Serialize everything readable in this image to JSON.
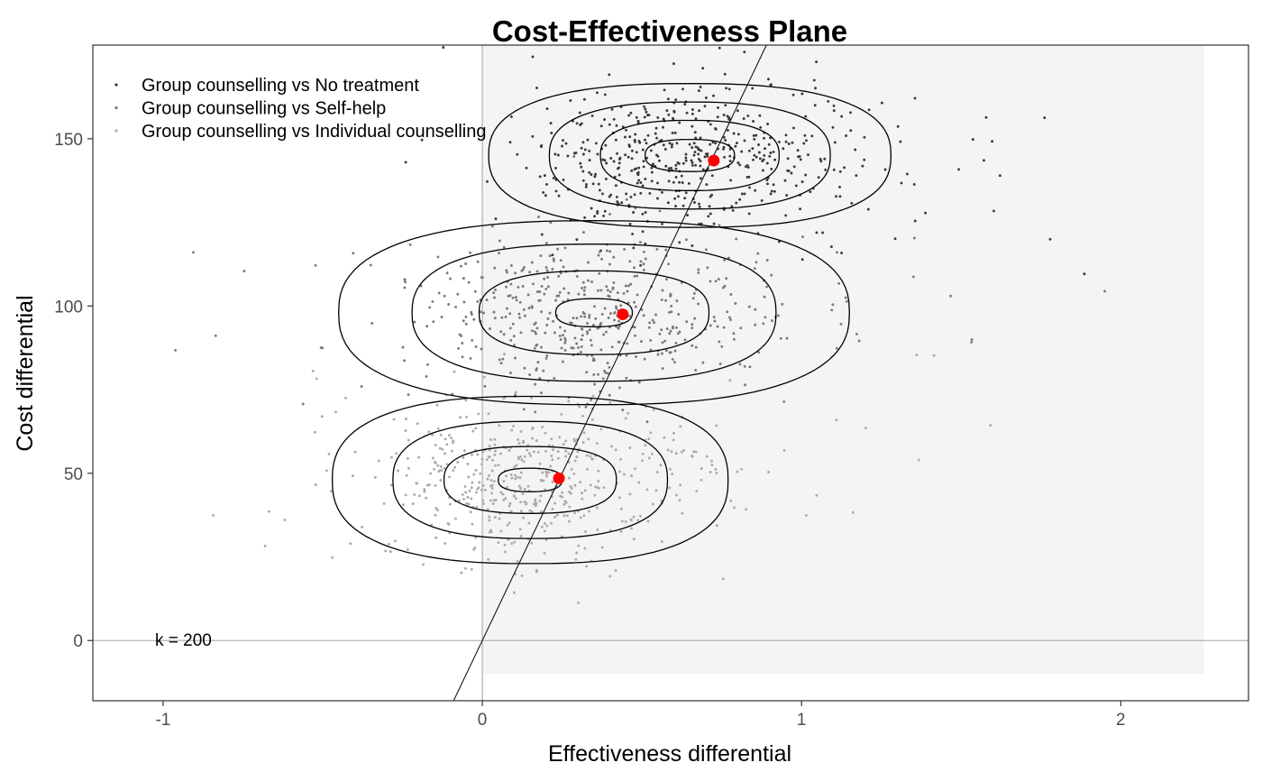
{
  "chart_data": {
    "type": "scatter",
    "title": "Cost-Effectiveness Plane",
    "xlabel": "Effectiveness differential",
    "ylabel": "Cost differential",
    "xlim": [
      -1.22,
      2.4
    ],
    "ylim": [
      -18,
      178
    ],
    "x_ticks": [
      -1,
      0,
      1,
      2
    ],
    "y_ticks": [
      0,
      50,
      100,
      150
    ],
    "grid": false,
    "legend_position": "top-left",
    "wtp": 200,
    "wtp_label": "k = 200",
    "sustainability_region": {
      "x": [
        0,
        2.26
      ],
      "y": [
        -10,
        178
      ],
      "color": "#f4f4f4"
    },
    "series": [
      {
        "name": "Group counselling vs No treatment",
        "color": "#3a3a3a",
        "center": [
          0.65,
          145
        ],
        "spread": [
          0.24,
          11
        ],
        "n": 520,
        "mean": [
          0.725,
          143.5
        ],
        "contours": [
          [
            0.14,
            4.8
          ],
          [
            0.28,
            10.5
          ],
          [
            0.44,
            16
          ],
          [
            0.63,
            21.5
          ]
        ]
      },
      {
        "name": "Group counselling vs Self-help",
        "color": "#7a7a7a",
        "center": [
          0.35,
          98
        ],
        "spread": [
          0.26,
          12
        ],
        "n": 520,
        "mean": [
          0.44,
          97.5
        ],
        "contours": [
          [
            0.12,
            4.2
          ],
          [
            0.36,
            12.5
          ],
          [
            0.57,
            20.5
          ],
          [
            0.8,
            27.5
          ]
        ]
      },
      {
        "name": "Group counselling vs Individual counselling",
        "color": "#ababab",
        "center": [
          0.15,
          48
        ],
        "spread": [
          0.24,
          12
        ],
        "n": 520,
        "mean": [
          0.24,
          48.5
        ],
        "contours": [
          [
            0.1,
            3.5
          ],
          [
            0.27,
            10
          ],
          [
            0.43,
            17.5
          ],
          [
            0.62,
            25
          ]
        ]
      }
    ],
    "mean_color": "#ff0000"
  }
}
